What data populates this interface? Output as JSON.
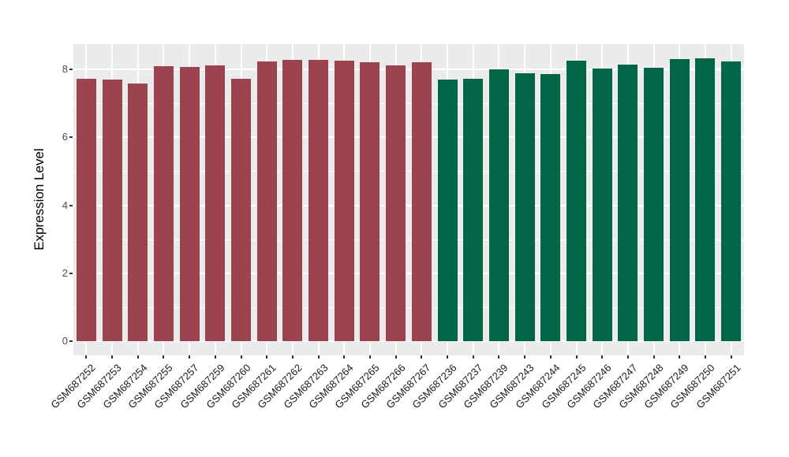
{
  "chart_data": {
    "type": "bar",
    "title": "",
    "xlabel": "",
    "ylabel": "Expression Level",
    "ylim": [
      0,
      8.75
    ],
    "yticks": [
      0,
      2,
      4,
      6,
      8
    ],
    "minor_yticks": [
      1,
      3,
      5,
      7
    ],
    "grid": true,
    "legend_position": "none",
    "panel_background": "#EBEBEB",
    "grid_color": "#FFFFFF",
    "tick_color": "#333333",
    "series": [
      {
        "name": "group-1-maroon",
        "color": "#9B4450",
        "categories": [
          "GSM687252",
          "GSM687253",
          "GSM687254",
          "GSM687255",
          "GSM687257",
          "GSM687259",
          "GSM687260",
          "GSM687261",
          "GSM687262",
          "GSM687263",
          "GSM687264",
          "GSM687265",
          "GSM687266",
          "GSM687267"
        ],
        "values": [
          7.72,
          7.71,
          7.59,
          8.1,
          8.07,
          8.12,
          7.73,
          8.24,
          8.27,
          8.27,
          8.25,
          8.2,
          8.12,
          8.21
        ]
      },
      {
        "name": "group-2-green",
        "color": "#006647",
        "categories": [
          "GSM687236",
          "GSM687237",
          "GSM687239",
          "GSM687243",
          "GSM687244",
          "GSM687245",
          "GSM687246",
          "GSM687247",
          "GSM687248",
          "GSM687249",
          "GSM687250",
          "GSM687251"
        ],
        "values": [
          7.7,
          7.73,
          8.01,
          7.89,
          7.86,
          8.26,
          8.03,
          8.15,
          8.04,
          8.3,
          8.32,
          8.23
        ]
      }
    ]
  }
}
